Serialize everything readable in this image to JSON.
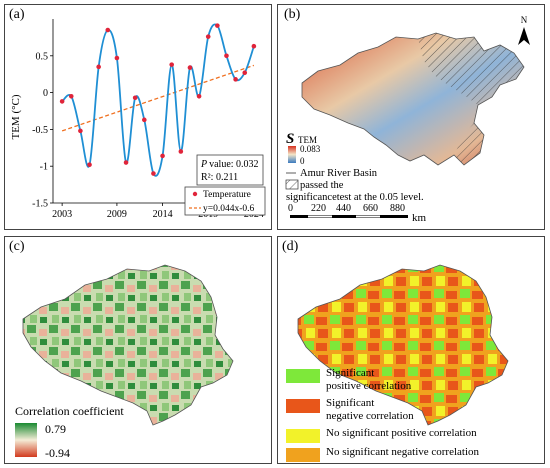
{
  "panels": {
    "a": "(a)",
    "b": "(b)",
    "c": "(c)",
    "d": "(d)"
  },
  "chart_data": {
    "type": "line",
    "ylabel": "TEM (°C)",
    "xlabel": "",
    "xlim": [
      2002,
      2025
    ],
    "ylim": [
      -1.5,
      1.0
    ],
    "x_ticks": [
      2003,
      2009,
      2014,
      2019,
      2024
    ],
    "y_ticks": [
      -1.5,
      -1,
      -0.5,
      0,
      0.5
    ],
    "x_tick_labels": [
      "2003",
      "2009",
      "2014",
      "2019",
      "2024"
    ],
    "y_tick_labels": [
      "-1.5",
      "-1",
      "-0.5",
      "0",
      "0.5"
    ],
    "series": [
      {
        "name": "Temperature",
        "color": "#1f8fd4",
        "marker_color": "#e0243a",
        "x": [
          2003,
          2004,
          2005,
          2006,
          2007,
          2008,
          2009,
          2010,
          2011,
          2012,
          2013,
          2014,
          2015,
          2016,
          2017,
          2018,
          2019,
          2020,
          2021,
          2022,
          2023,
          2024
        ],
        "y": [
          -0.12,
          -0.05,
          -0.52,
          -0.98,
          0.35,
          0.85,
          0.47,
          -0.95,
          -0.07,
          -0.37,
          -1.1,
          -0.86,
          0.38,
          -0.8,
          0.34,
          -0.05,
          0.76,
          0.91,
          0.5,
          0.18,
          0.27,
          0.63
        ]
      }
    ],
    "trendline": {
      "label": "y=0.044x-0.6",
      "slope": 0.044,
      "intercept": -0.6,
      "color": "#f07020"
    },
    "annotations": {
      "p_label": "P",
      "p_value": "value: 0.032",
      "r2": "R²: 0.211"
    },
    "legend": [
      "Temperature",
      "y=0.044x-0.6"
    ]
  },
  "panel_b": {
    "s_symbol": "S",
    "s_sub": "TEM",
    "legend_high": "0.083",
    "legend_low": "0",
    "basin_label": "Amur River Basin",
    "hatch_label_1": "passed the",
    "hatch_label_2": "significancetest at the 0.05 level.",
    "scale_ticks": [
      "0",
      "220",
      "440",
      "660",
      "880"
    ],
    "scale_unit": "km",
    "north": "N",
    "colors": {
      "high": "#d7301f",
      "mid": "#f4e6c8",
      "low": "#3a7abf"
    }
  },
  "panel_c": {
    "title": "Correlation coefficient",
    "high": "0.79",
    "low": "-0.94",
    "colors": {
      "high": "#1a8a32",
      "mid": "#f4ecd6",
      "low": "#d23a1e"
    }
  },
  "panel_d": {
    "legend": [
      {
        "label_1": "Significant",
        "label_2": "positive correlation",
        "color": "#7ee83a"
      },
      {
        "label_1": "Significant",
        "label_2": "negative correlation",
        "color": "#e8561a"
      },
      {
        "label_1": "No significant positive correlation",
        "label_2": "",
        "color": "#f2f22a"
      },
      {
        "label_1": "No significant negative correlation",
        "label_2": "",
        "color": "#f0a21e"
      }
    ]
  }
}
